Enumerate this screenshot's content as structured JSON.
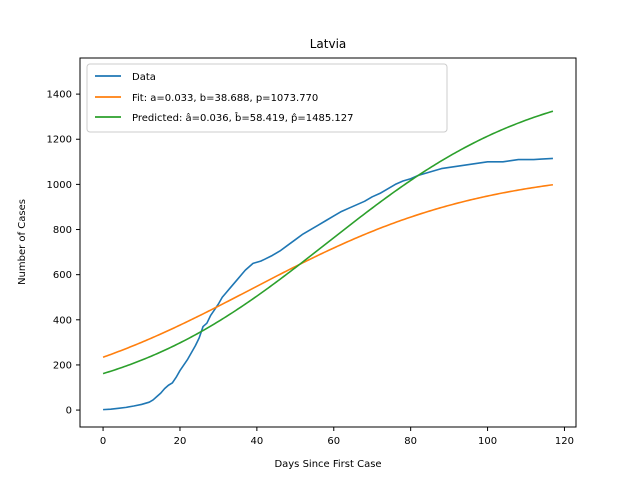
{
  "chart_data": {
    "type": "line",
    "title": "Latvia",
    "xlabel": "Days Since First Case",
    "ylabel": "Number of Cases",
    "xlim": [
      -6,
      123
    ],
    "ylim": [
      -75,
      1560
    ],
    "xticks": [
      0,
      20,
      40,
      60,
      80,
      100,
      120
    ],
    "yticks": [
      0,
      200,
      400,
      600,
      800,
      1000,
      1200,
      1400
    ],
    "grid": false,
    "legend_position": "top-left",
    "series": [
      {
        "name": "Data",
        "color": "#1f77b4",
        "kind": "points",
        "x": [
          0,
          2,
          4,
          6,
          8,
          10,
          12,
          13,
          14,
          15,
          16,
          17,
          18,
          19,
          20,
          21,
          22,
          23,
          24,
          25,
          26,
          27,
          28,
          29,
          30,
          31,
          32,
          33,
          34,
          35,
          36,
          37,
          38,
          39,
          40,
          41,
          42,
          44,
          46,
          48,
          50,
          52,
          54,
          56,
          58,
          60,
          62,
          64,
          66,
          68,
          70,
          72,
          74,
          76,
          78,
          80,
          82,
          84,
          86,
          88,
          90,
          92,
          94,
          96,
          98,
          100,
          102,
          104,
          106,
          108,
          110,
          112,
          114,
          117
        ],
        "y": [
          2,
          4,
          8,
          12,
          18,
          25,
          35,
          45,
          60,
          75,
          95,
          110,
          120,
          145,
          175,
          200,
          225,
          255,
          285,
          320,
          370,
          385,
          420,
          445,
          470,
          500,
          520,
          540,
          560,
          580,
          600,
          620,
          635,
          650,
          655,
          660,
          668,
          685,
          705,
          730,
          755,
          780,
          800,
          820,
          840,
          860,
          880,
          895,
          910,
          925,
          945,
          960,
          980,
          1000,
          1015,
          1025,
          1040,
          1050,
          1060,
          1070,
          1075,
          1080,
          1085,
          1090,
          1095,
          1100,
          1100,
          1100,
          1105,
          1110,
          1110,
          1110,
          1112,
          1115
        ]
      },
      {
        "name": "Fit: a=0.033, b=38.688, p=1073.770",
        "color": "#ff7f0e",
        "kind": "logistic",
        "a": 0.033,
        "b": 38.688,
        "p": 1073.77,
        "x_range": [
          0,
          117
        ]
      },
      {
        "name": "Predicted: â=0.036, b̂=58.419, p̂=1485.127",
        "color": "#2ca02c",
        "kind": "logistic",
        "a": 0.036,
        "b": 58.419,
        "p": 1485.127,
        "x_range": [
          0,
          117
        ]
      }
    ]
  }
}
